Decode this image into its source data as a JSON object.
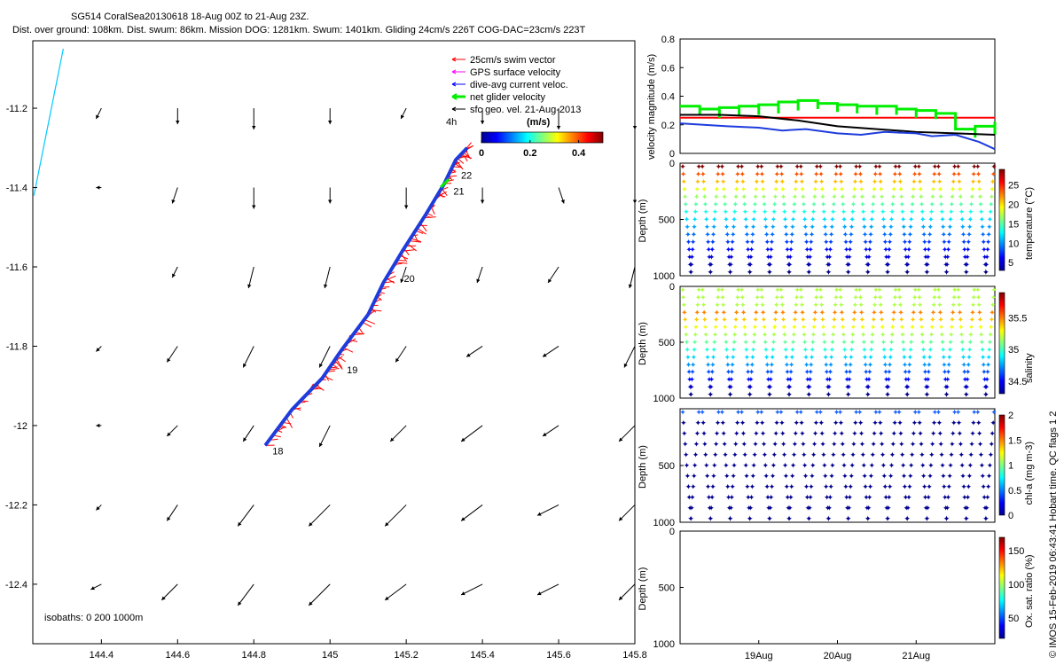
{
  "header": {
    "title": "SG514 CoralSea20130618 18-Aug 00Z to 21-Aug 23Z.",
    "subtitle": "Dist. over ground: 108km. Dist. swum: 86km. Mission DOG: 1281km. Swum: 1401km. Gliding 24cm/s 226T COG-DAC=23cm/s 223T"
  },
  "credit": "© IMOS 15-Feb-2019 06:43:41 Hobart time. QC flags 1  2",
  "colors": {
    "swim": "#ff0000",
    "gps": "#ff00ff",
    "dac": "#0000ff",
    "net": "#00ee00",
    "sfc": "#000000",
    "track": "#1e3cdc",
    "isobath": "#00c8ff"
  },
  "chart_data": [
    {
      "type": "scatter",
      "id": "map",
      "xlim": [
        144.22,
        145.8
      ],
      "ylim": [
        -12.55,
        -11.03
      ],
      "x_ticks": [
        144.4,
        144.6,
        144.8,
        145,
        145.2,
        145.4,
        145.6,
        145.8
      ],
      "x_tick_labels": [
        "144.4",
        "144.6",
        "144.8",
        "145",
        "145.2",
        "145.4",
        "145.6",
        "145.8"
      ],
      "y_ticks": [
        -11.2,
        -11.4,
        -11.6,
        -11.8,
        -12,
        -12.2,
        -12.4
      ],
      "y_tick_labels": [
        "-11.2",
        "-11.4",
        "-11.6",
        "-11.8",
        "-12",
        "-12.2",
        "-12.4"
      ],
      "legend": [
        {
          "label": "25cm/s swim vector",
          "color": "#ff0000",
          "marker": "arrow"
        },
        {
          "label": "GPS surface velocity",
          "color": "#ff00ff",
          "marker": "arrow"
        },
        {
          "label": "dive-avg current veloc.",
          "color": "#0000ff",
          "marker": "arrow"
        },
        {
          "label": "net glider velocity",
          "color": "#00ee00",
          "marker": "thick-arrow"
        },
        {
          "label": "sfc geo. vel. 21-Aug-2013",
          "color": "#000000",
          "marker": "arrow"
        }
      ],
      "legend_position": "top-right",
      "colorbar": {
        "title": "(m/s)",
        "ticks": [
          0,
          0.2,
          0.4
        ],
        "tick_labels": [
          "0",
          "0.2",
          "0.4"
        ],
        "range": [
          0,
          0.5
        ],
        "note": "4h"
      },
      "isobath_label": "isobaths: 0   200  1000m",
      "isobath": {
        "x": [
          144.223,
          144.3
        ],
        "y": [
          -11.42,
          -11.05
        ]
      },
      "glider_track": {
        "lon": [
          144.83,
          144.9,
          144.98,
          145.03,
          145.1,
          145.14,
          145.19,
          145.25,
          145.3,
          145.33,
          145.36
        ],
        "lat": [
          -12.05,
          -11.96,
          -11.88,
          -11.81,
          -11.72,
          -11.64,
          -11.56,
          -11.47,
          -11.39,
          -11.33,
          -11.3
        ]
      },
      "day_labels": [
        {
          "label": "18",
          "lon": 144.835,
          "lat": -12.055
        },
        {
          "label": "19",
          "lon": 145.03,
          "lat": -11.85
        },
        {
          "label": "20",
          "lon": 145.18,
          "lat": -11.62
        },
        {
          "label": "21",
          "lon": 145.31,
          "lat": -11.4
        },
        {
          "label": "22",
          "lon": 145.33,
          "lat": -11.36
        }
      ],
      "sfc_vectors": {
        "lon": [
          144.4,
          144.6,
          144.8,
          145,
          145.2,
          145.4,
          145.6,
          145.8
        ],
        "lat": [
          -11.2,
          -11.4,
          -11.6,
          -11.8,
          -12,
          -12.2,
          -12.4
        ],
        "u": [
          [
            -0.01,
            0,
            0,
            0,
            -0.01,
            0,
            0,
            0
          ],
          [
            -0.01,
            -0.01,
            0,
            0,
            0,
            0,
            0.01,
            0
          ],
          [
            0,
            -0.01,
            -0.01,
            -0.01,
            -0.01,
            -0.01,
            -0.02,
            -0.01
          ],
          [
            -0.01,
            -0.02,
            -0.02,
            -0.02,
            -0.02,
            -0.03,
            -0.03,
            -0.02
          ],
          [
            -0.01,
            -0.02,
            -0.02,
            -0.02,
            -0.03,
            -0.04,
            -0.03,
            -0.03
          ],
          [
            -0.01,
            -0.02,
            -0.03,
            -0.04,
            -0.04,
            -0.04,
            -0.04,
            -0.03
          ],
          [
            -0.02,
            -0.03,
            -0.03,
            -0.04,
            -0.04,
            -0.04,
            -0.04,
            -0.03
          ]
        ],
        "v": [
          [
            -0.02,
            -0.03,
            -0.04,
            -0.03,
            -0.02,
            -0.03,
            -0.04,
            -0.04
          ],
          [
            0,
            -0.03,
            -0.04,
            -0.03,
            -0.04,
            -0.03,
            -0.03,
            -0.03
          ],
          [
            0,
            -0.02,
            -0.04,
            -0.04,
            -0.03,
            -0.03,
            -0.03,
            -0.04
          ],
          [
            -0.01,
            -0.03,
            -0.04,
            -0.04,
            -0.03,
            -0.02,
            -0.02,
            -0.04
          ],
          [
            0,
            -0.02,
            -0.03,
            -0.04,
            -0.03,
            -0.03,
            -0.02,
            -0.03
          ],
          [
            -0.01,
            -0.03,
            -0.04,
            -0.04,
            -0.04,
            -0.03,
            -0.02,
            -0.03
          ],
          [
            -0.01,
            -0.03,
            -0.04,
            -0.04,
            -0.03,
            -0.02,
            -0.02,
            -0.03
          ]
        ]
      }
    },
    {
      "type": "line",
      "id": "velocity",
      "ylabel": "velocity magnitude (m/s)",
      "xlim": [
        18,
        22
      ],
      "ylim": [
        0,
        0.8
      ],
      "y_ticks": [
        0,
        0.2,
        0.4,
        0.6,
        0.8
      ],
      "y_tick_labels": [
        "0",
        "0.2",
        "0.4",
        "0.6",
        "0.8"
      ],
      "series": [
        {
          "color": "#ff0000",
          "x": [
            18,
            22
          ],
          "y": [
            0.25,
            0.25
          ]
        },
        {
          "color": "#00ee00",
          "x": [
            18.0,
            18.25,
            18.5,
            18.75,
            19.0,
            19.25,
            19.5,
            19.75,
            20.0,
            20.25,
            20.5,
            20.75,
            21.0,
            21.25,
            21.5,
            21.75,
            22.0
          ],
          "y": [
            0.33,
            0.31,
            0.32,
            0.33,
            0.34,
            0.36,
            0.37,
            0.35,
            0.34,
            0.33,
            0.33,
            0.31,
            0.3,
            0.28,
            0.17,
            0.19,
            0.22
          ]
        },
        {
          "color": "#000000",
          "x": [
            18.0,
            18.5,
            19.0,
            19.5,
            20.0,
            20.5,
            21.0,
            21.5,
            22.0
          ],
          "y": [
            0.27,
            0.27,
            0.26,
            0.23,
            0.19,
            0.17,
            0.15,
            0.14,
            0.13
          ]
        },
        {
          "color": "#1e3cdc",
          "x": [
            18.0,
            18.3,
            18.6,
            19.0,
            19.3,
            19.6,
            20.0,
            20.3,
            20.6,
            21.0,
            21.2,
            21.5,
            21.8,
            22.0
          ],
          "y": [
            0.21,
            0.2,
            0.19,
            0.18,
            0.16,
            0.17,
            0.14,
            0.13,
            0.15,
            0.14,
            0.12,
            0.13,
            0.08,
            0.03
          ]
        }
      ]
    },
    {
      "type": "scatter",
      "id": "temperature",
      "ylabel": "Depth (m)",
      "colorbar_label": "temperature (°C)",
      "ylim": [
        1000,
        0
      ],
      "y_ticks": [
        0,
        500,
        1000
      ],
      "y_tick_labels": [
        "0",
        "500",
        "1000"
      ],
      "colorbar_ticks": [
        5,
        10,
        15,
        20,
        25
      ],
      "colorbar_tick_labels": [
        "5",
        "10",
        "15",
        "20",
        "25"
      ],
      "color_range": [
        3,
        29
      ],
      "dive_count": 16
    },
    {
      "type": "scatter",
      "id": "salinity",
      "ylabel": "Depth (m)",
      "colorbar_label": "salinity",
      "ylim": [
        1000,
        0
      ],
      "y_ticks": [
        0,
        500,
        1000
      ],
      "y_tick_labels": [
        "0",
        "500",
        "1000"
      ],
      "colorbar_ticks": [
        34.5,
        35,
        35.5
      ],
      "colorbar_tick_labels": [
        "34.5",
        "35",
        "35.5"
      ],
      "color_range": [
        34.3,
        35.9
      ],
      "dive_count": 16
    },
    {
      "type": "scatter",
      "id": "chla",
      "ylabel": "Depth (m)",
      "colorbar_label": "chl-a (mg m-3)",
      "ylim": [
        1000,
        0
      ],
      "y_ticks": [
        500,
        1000
      ],
      "y_tick_labels": [
        "500",
        "1000"
      ],
      "colorbar_ticks": [
        0,
        0.5,
        1,
        1.5,
        2
      ],
      "colorbar_tick_labels": [
        "0",
        "0.5",
        "1",
        "1.5",
        "2"
      ],
      "color_range": [
        0,
        2
      ],
      "dive_count": 16
    },
    {
      "type": "scatter",
      "id": "oxsat",
      "ylabel": "Depth (m)",
      "colorbar_label": "Ox. sat. ratio (%)",
      "ylim": [
        1000,
        0
      ],
      "y_ticks": [
        0,
        500,
        1000
      ],
      "y_tick_labels": [
        "0",
        "500",
        "1000"
      ],
      "colorbar_ticks": [
        50,
        100,
        150
      ],
      "colorbar_tick_labels": [
        "50",
        "100",
        "150"
      ],
      "color_range": [
        20,
        170
      ],
      "x_ticks": [
        19,
        20,
        21
      ],
      "x_tick_labels": [
        "19Aug",
        "20Aug",
        "21Aug"
      ],
      "xlim": [
        18,
        22
      ]
    }
  ]
}
